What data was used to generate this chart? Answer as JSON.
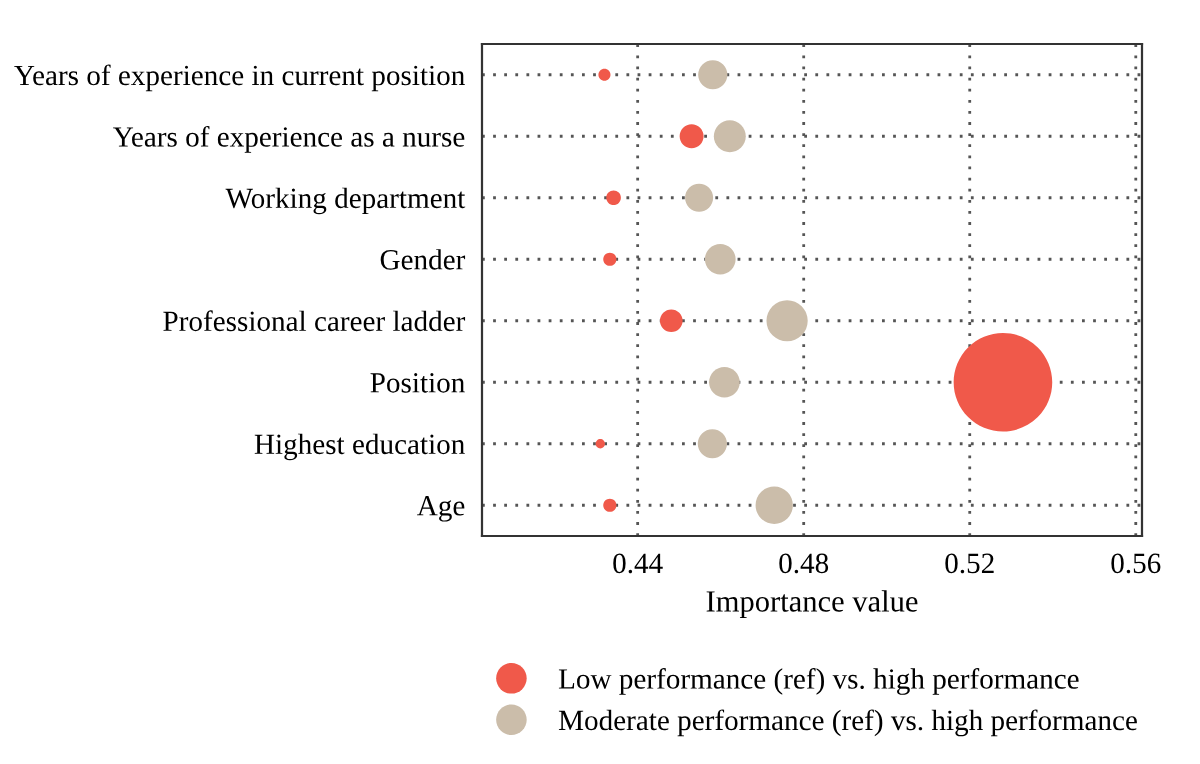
{
  "chart_data": {
    "type": "bubble",
    "orientation": "horizontal",
    "xlabel": "Importance value",
    "categories": [
      "Years of experience in current position",
      "Years of experience as a nurse",
      "Working department",
      "Gender",
      "Professional career ladder",
      "Position",
      "Highest education",
      "Age"
    ],
    "series": [
      {
        "name": "Low performance (ref) vs. high performance",
        "color": "#f0594a",
        "values": [
          0.432,
          0.453,
          0.4342,
          0.4333,
          0.4481,
          0.528,
          0.431,
          0.4333
        ],
        "sizes": [
          0.015,
          0.059,
          0.022,
          0.018,
          0.053,
          1,
          0.009,
          0.018
        ]
      },
      {
        "name": "Moderate performance (ref) vs. high performance",
        "color": "#cbbdaa",
        "values": [
          0.4581,
          0.4622,
          0.4548,
          0.4599,
          0.476,
          0.4609,
          0.458,
          0.4729
        ],
        "sizes": [
          0.088,
          0.105,
          0.081,
          0.097,
          0.175,
          0.097,
          0.088,
          0.143
        ]
      }
    ],
    "xlim": [
      0.4025,
      0.5615
    ],
    "xticks": [
      0.44,
      0.48,
      0.52,
      0.56
    ],
    "grid": true,
    "legend": "bottom"
  }
}
